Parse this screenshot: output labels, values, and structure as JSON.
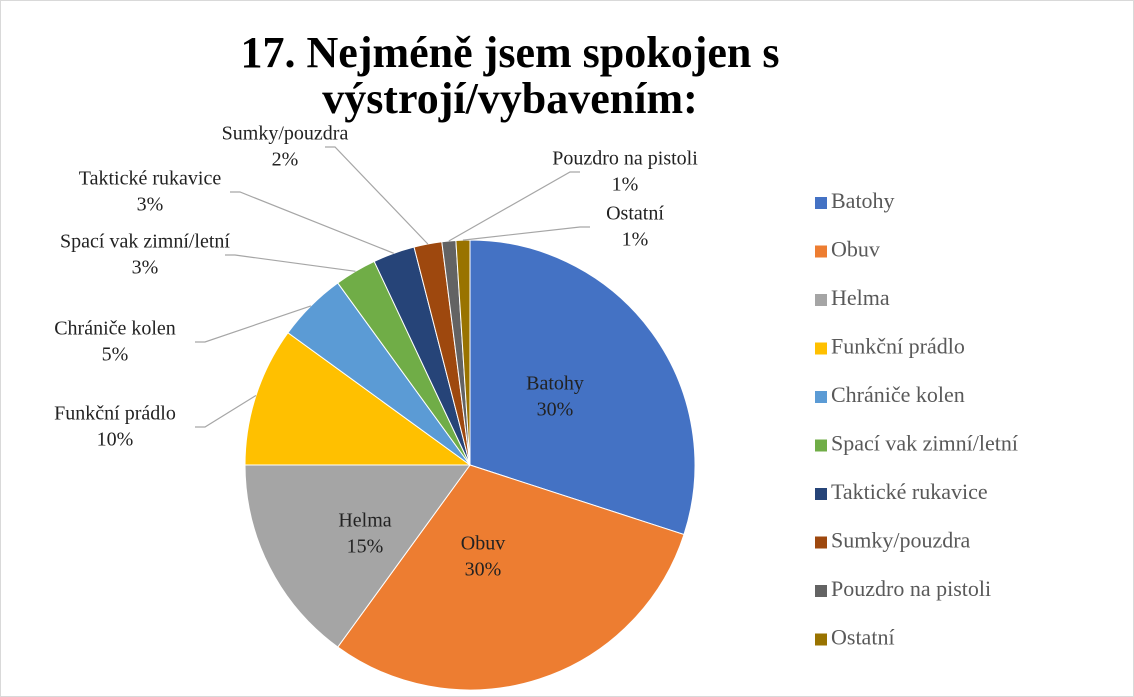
{
  "chart_data": {
    "type": "pie",
    "title": "17. Nejméně jsem spokojen s výstrojí/vybavením:",
    "categories": [
      "Batohy",
      "Obuv",
      "Helma",
      "Funkční prádlo",
      "Chrániče kolen",
      "Spací vak zimní/letní",
      "Taktické rukavice",
      "Sumky/pouzdra",
      "Pouzdro na pistoli",
      "Ostatní"
    ],
    "values": [
      30,
      30,
      15,
      10,
      5,
      3,
      3,
      2,
      1,
      1
    ],
    "value_labels": [
      "30%",
      "30%",
      "15%",
      "10%",
      "5%",
      "3%",
      "3%",
      "2%",
      "1%",
      "1%"
    ],
    "colors": [
      "#4472c4",
      "#ed7d31",
      "#a5a5a5",
      "#ffc000",
      "#5b9bd5",
      "#70ad47",
      "#264478",
      "#9e480e",
      "#636363",
      "#997300"
    ],
    "legend": "right"
  }
}
